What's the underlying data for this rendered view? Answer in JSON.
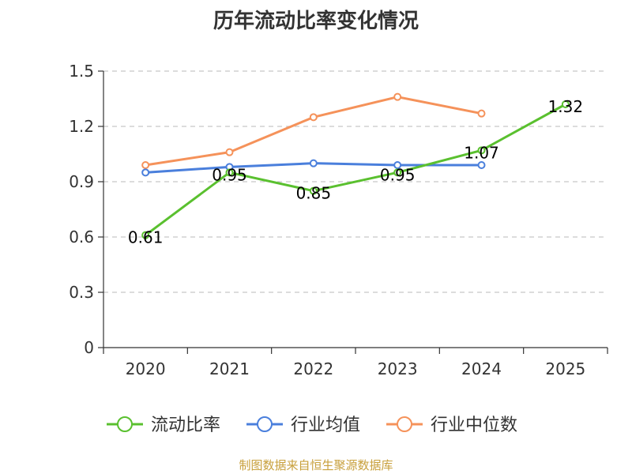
{
  "chart_data": {
    "type": "line",
    "title": "历年流动比率变化情况",
    "categories": [
      "2020",
      "2021",
      "2022",
      "2023",
      "2024",
      "2025"
    ],
    "y_ticks": [
      "0",
      "0.3",
      "0.6",
      "0.9",
      "1.2",
      "1.5"
    ],
    "ylim": [
      0,
      1.5
    ],
    "grid": true,
    "legend_position": "bottom",
    "series": [
      {
        "name": "流动比率",
        "color": "#5ac02f",
        "values": [
          0.61,
          0.95,
          0.85,
          0.95,
          1.07,
          1.32
        ],
        "data_labels": [
          "0.61",
          "0.95",
          "0.85",
          "0.95",
          "1.07",
          "1.32"
        ]
      },
      {
        "name": "行业均值",
        "color": "#4a7fdc",
        "values": [
          0.95,
          0.98,
          1.0,
          0.99,
          0.99,
          null
        ]
      },
      {
        "name": "行业中位数",
        "color": "#f5925a",
        "values": [
          0.99,
          1.06,
          1.25,
          1.36,
          1.27,
          null
        ]
      }
    ]
  },
  "footer": {
    "source": "制图数据来自恒生聚源数据库"
  }
}
